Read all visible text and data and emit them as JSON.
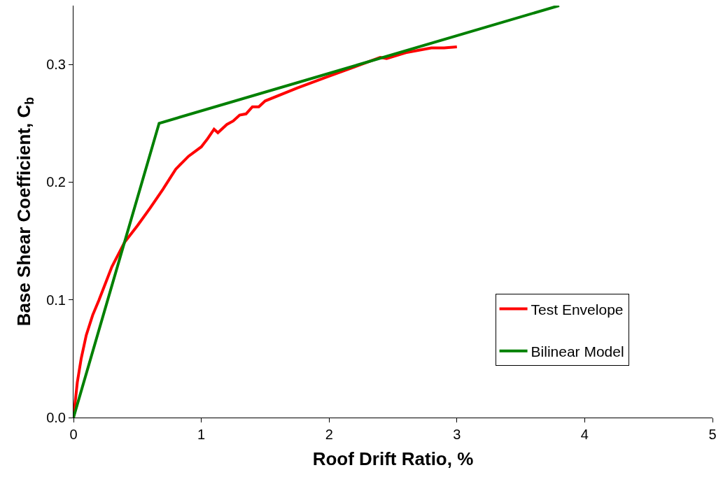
{
  "chart_data": {
    "type": "line",
    "xlabel": "Roof Drift Ratio, %",
    "ylabel": "Base Shear Coefficient, C$_{b}$",
    "xlim": [
      0,
      5
    ],
    "xticks": [
      0,
      1,
      2,
      3,
      4,
      5
    ],
    "ylim": [
      0,
      0.35
    ],
    "yticks": [
      {
        "value": 0,
        "label": "0.0"
      },
      {
        "value": 0.1,
        "label": "0.1"
      },
      {
        "value": 0.2,
        "label": "0.2"
      },
      {
        "value": 0.3,
        "label": "0.3"
      }
    ],
    "legend": "bottom right",
    "marker": "none",
    "line_style": "solid",
    "series": [
      {
        "name": "Test Envelope",
        "color": "#ff0000",
        "x": [
          0,
          0.03,
          0.06,
          0.1,
          0.15,
          0.2,
          0.3,
          0.4,
          0.5,
          0.6,
          0.7,
          0.8,
          0.9,
          1.0,
          1.05,
          1.1,
          1.13,
          1.2,
          1.25,
          1.3,
          1.35,
          1.4,
          1.45,
          1.5,
          1.75,
          2.0,
          2.2,
          2.4,
          2.45,
          2.6,
          2.8,
          2.9,
          3.0
        ],
        "values": [
          0,
          0.03,
          0.05,
          0.07,
          0.087,
          0.1,
          0.128,
          0.149,
          0.163,
          0.178,
          0.194,
          0.211,
          0.222,
          0.23,
          0.237,
          0.245,
          0.242,
          0.249,
          0.252,
          0.257,
          0.258,
          0.264,
          0.264,
          0.269,
          0.28,
          0.29,
          0.298,
          0.306,
          0.305,
          0.31,
          0.314,
          0.314,
          0.315
        ]
      },
      {
        "name": "Bilinear Model",
        "color": "#008000",
        "x": [
          0,
          0.67,
          3.8
        ],
        "values": [
          0,
          0.25,
          0.35
        ]
      }
    ]
  }
}
